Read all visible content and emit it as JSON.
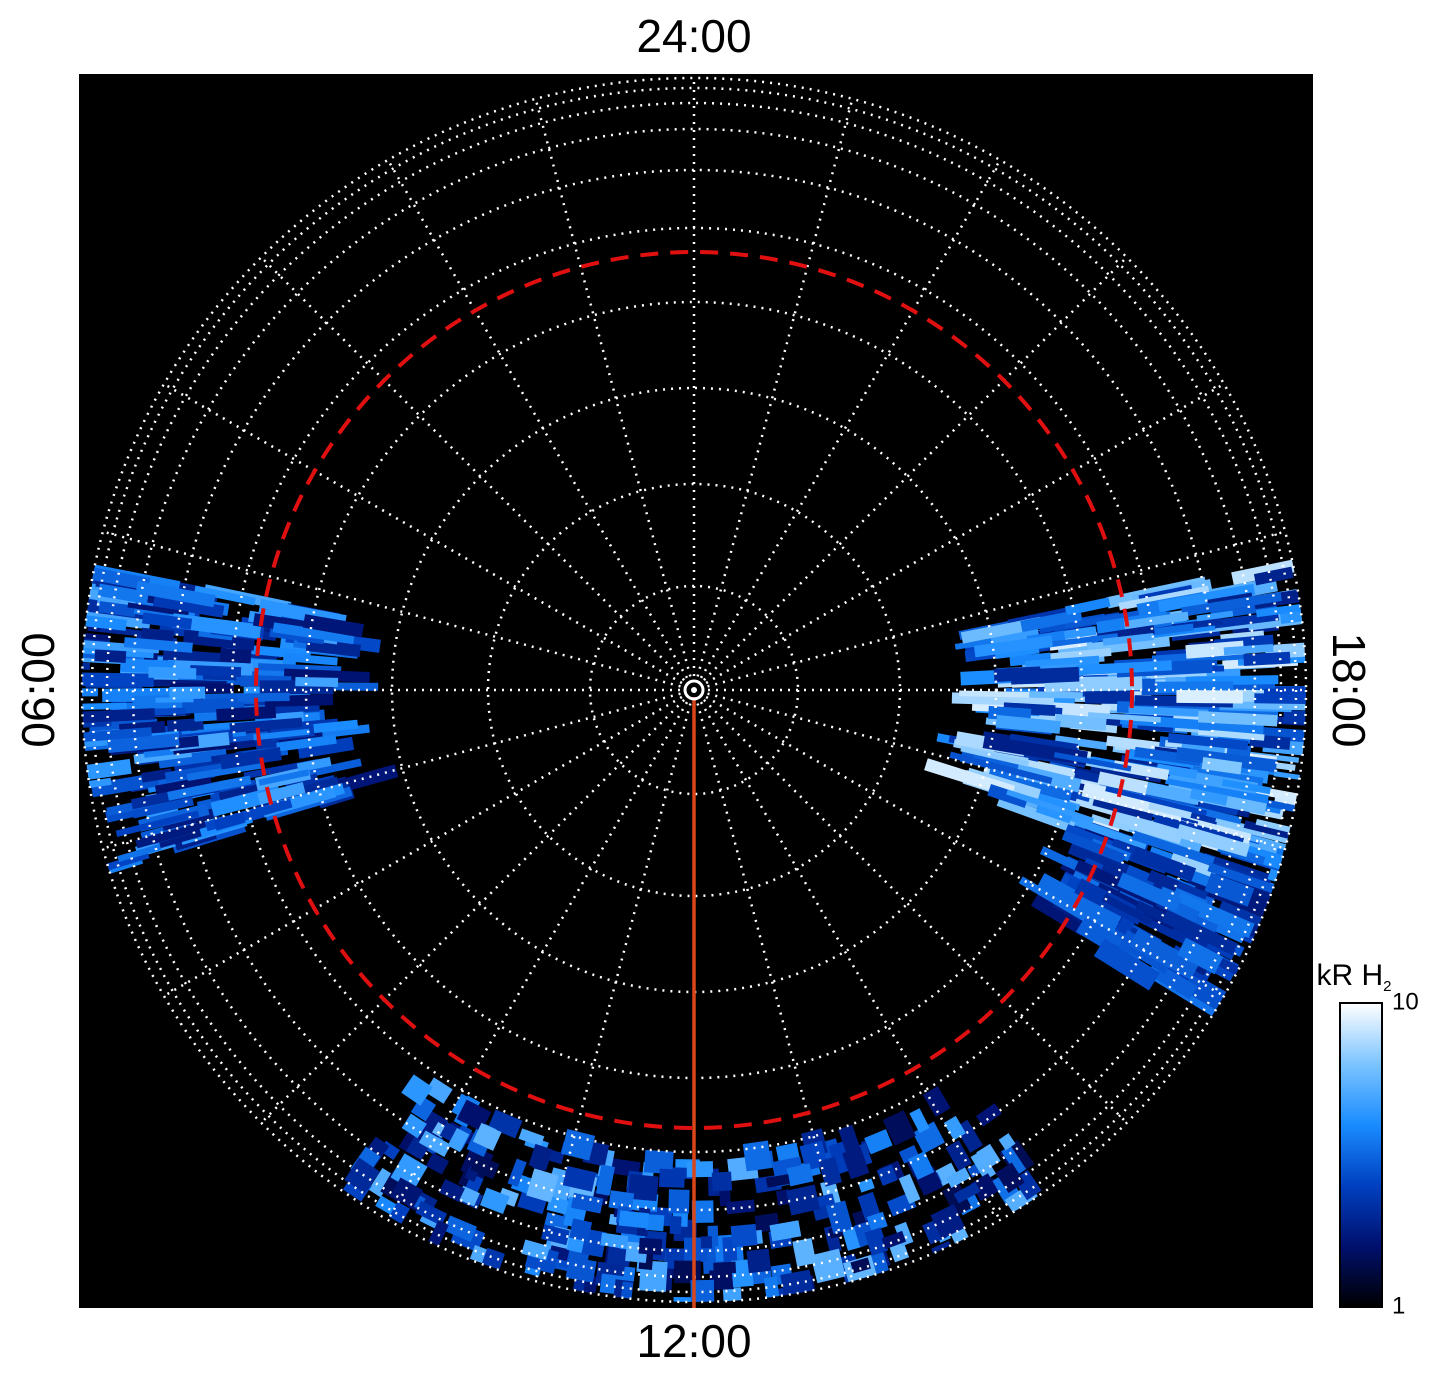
{
  "chart_data": {
    "type": "polar-image",
    "theta_labels": [
      "24:00",
      "18:00",
      "12:00",
      "06:00"
    ],
    "colorbar": {
      "label": "kR H",
      "label_subscript": "2",
      "lim": [
        1,
        10
      ],
      "ticks": [
        1,
        10
      ],
      "log": true,
      "colors": [
        "#000000",
        "#00106e",
        "#0040c0",
        "#1a8cff",
        "#7cc4ff",
        "#ffffff"
      ]
    }
  }
}
